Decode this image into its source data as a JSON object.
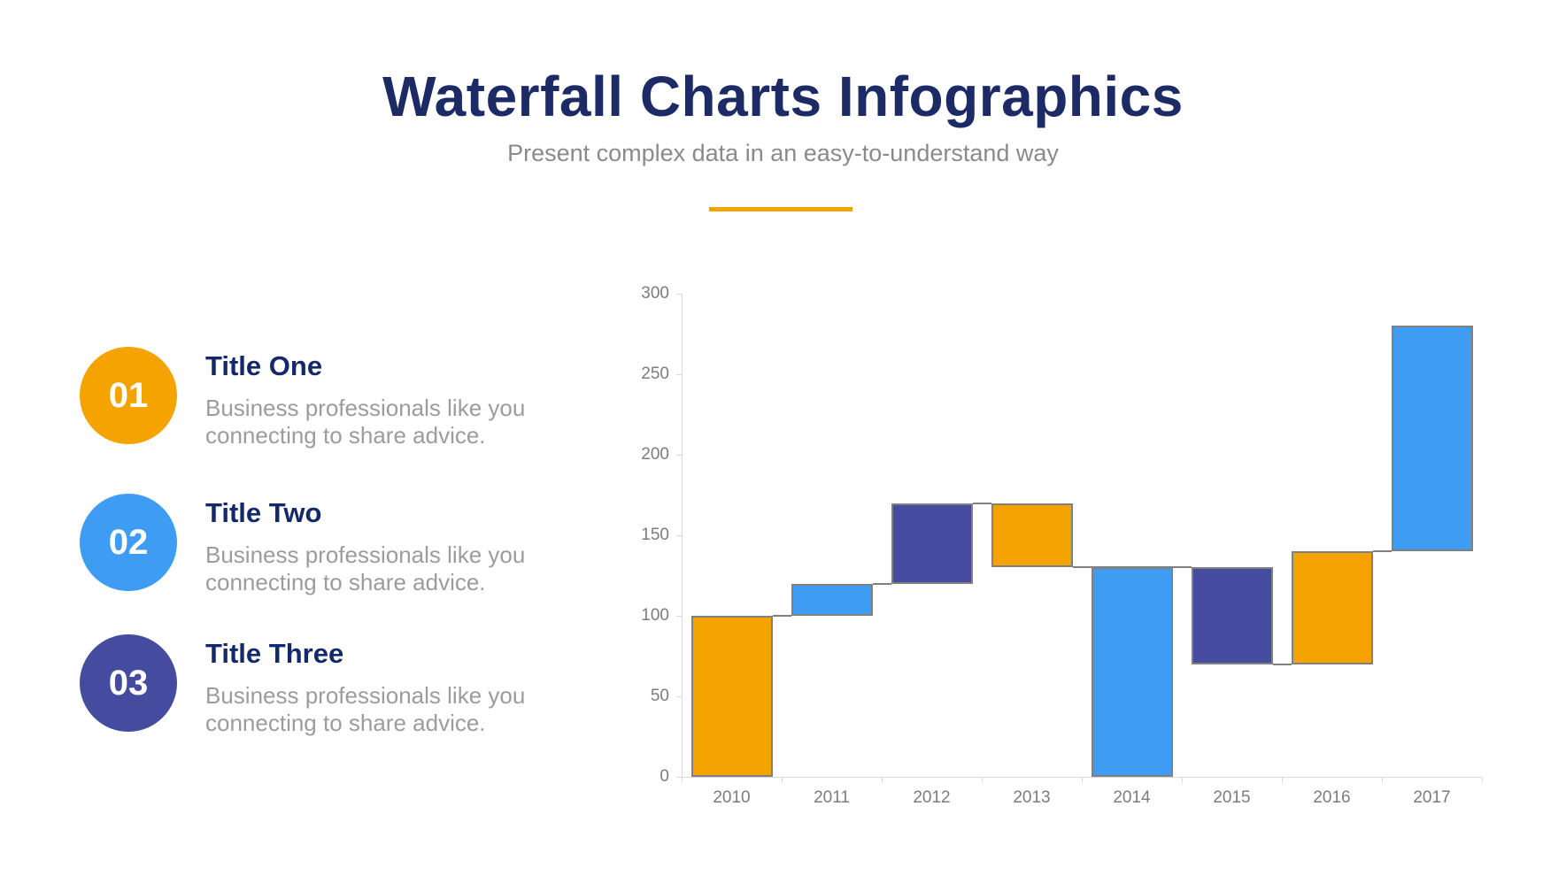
{
  "header": {
    "title": "Waterfall Charts Infographics",
    "subtitle": "Present complex data in an easy-to-understand way",
    "accent_color": "#F5A301"
  },
  "items": [
    {
      "number": "01",
      "title": "Title One",
      "circle_color": "#F5A301",
      "description": "Business professionals like you connecting to share advice.",
      "lines": [
        "Business professionals like you",
        "connecting to share advice."
      ]
    },
    {
      "number": "02",
      "title": "Title Two",
      "circle_color": "#3E9DF2",
      "description": "Business professionals like you connecting to share advice.",
      "lines": [
        "Business professionals like you",
        "connecting to share advice."
      ]
    },
    {
      "number": "03",
      "title": "Title Three",
      "circle_color": "#454CA0",
      "description": "Business professionals like you connecting to share advice.",
      "lines": [
        "Business professionals like you",
        "connecting to share advice."
      ]
    }
  ],
  "chart_data": {
    "type": "bar",
    "subtype": "waterfall",
    "title": "",
    "xlabel": "",
    "ylabel": "",
    "categories": [
      "2010",
      "2011",
      "2012",
      "2013",
      "2014",
      "2015",
      "2016",
      "2017"
    ],
    "bars": [
      {
        "category": "2010",
        "start": 0,
        "end": 100,
        "change": 100,
        "color": "#F5A301"
      },
      {
        "category": "2011",
        "start": 100,
        "end": 120,
        "change": 20,
        "color": "#3E9DF2"
      },
      {
        "category": "2012",
        "start": 120,
        "end": 170,
        "change": 50,
        "color": "#454CA0"
      },
      {
        "category": "2013",
        "start": 170,
        "end": 130,
        "change": -40,
        "color": "#F5A301"
      },
      {
        "category": "2014",
        "start": 130,
        "end": 0,
        "change": -130,
        "color": "#3E9DF2"
      },
      {
        "category": "2015",
        "start": 130,
        "end": 70,
        "change": -60,
        "color": "#454CA0"
      },
      {
        "category": "2016",
        "start": 70,
        "end": 140,
        "change": 70,
        "color": "#F5A301"
      },
      {
        "category": "2017",
        "start": 140,
        "end": 280,
        "change": 140,
        "color": "#3E9DF2"
      }
    ],
    "connectors": [
      {
        "value": 100,
        "from": 0,
        "to": 1
      },
      {
        "value": 120,
        "from": 1,
        "to": 2
      },
      {
        "value": 170,
        "from": 2,
        "to": 3
      },
      {
        "value": 130,
        "from": 3,
        "to": 5
      },
      {
        "value": 70,
        "from": 5,
        "to": 6
      },
      {
        "value": 140,
        "from": 6,
        "to": 7
      }
    ],
    "ylim": [
      0,
      300
    ],
    "yticks": [
      0,
      50,
      100,
      150,
      200,
      250,
      300
    ],
    "grid": false,
    "legend": false,
    "axis_color": "#d9d9d9",
    "bar_border_color": "#808080",
    "tick_label_color": "#7c7c7c"
  }
}
